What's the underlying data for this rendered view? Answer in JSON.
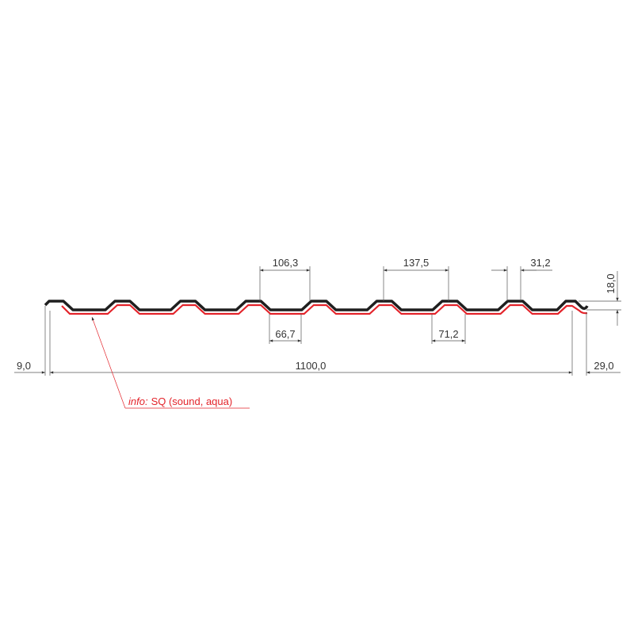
{
  "drawing": {
    "colors": {
      "profile": "#1f1f1f",
      "coating": "#e3232a",
      "dimension": "#555555"
    },
    "dimensions": {
      "pitch": "137,5",
      "crest_top_span": "106,3",
      "crest_width": "31,2",
      "valley_width_a": "66,7",
      "valley_width_b": "71,2",
      "height": "18,0",
      "total_width": "1100,0",
      "left_overhang": "9,0",
      "right_overhang": "29,0"
    },
    "annotation": {
      "prefix": "info:",
      "text": "SQ (sound, aqua)"
    }
  }
}
